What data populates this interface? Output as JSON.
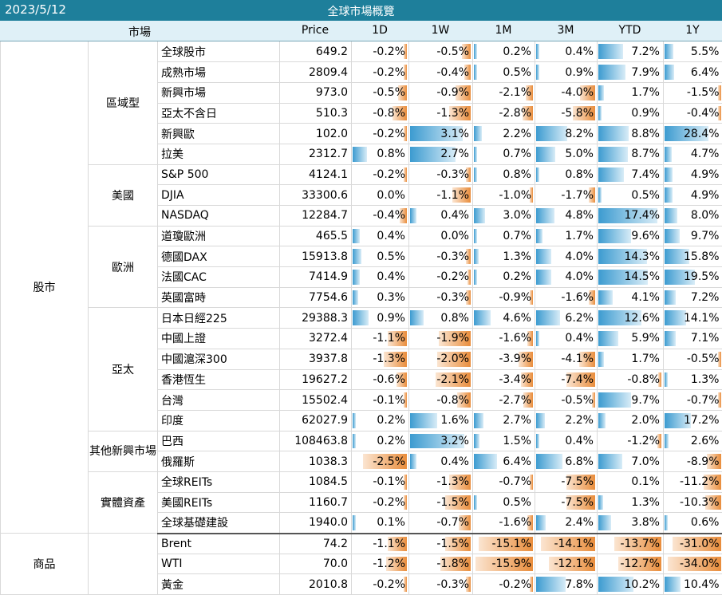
{
  "header": {
    "date": "2023/5/12",
    "title": "全球市場概覽",
    "columns": [
      "市場",
      "Price",
      "1D",
      "1W",
      "1M",
      "3M",
      "YTD",
      "1Y"
    ]
  },
  "colors": {
    "title_bg": "#1e7f9b",
    "header_bg": "#dff0f7",
    "positive_bar": "#3c9bd0",
    "negative_bar": "#e98d3c"
  },
  "sections": [
    {
      "label": "股市",
      "groups": [
        {
          "label": "區域型",
          "rows": [
            {
              "name": "全球股市",
              "price": "649.2",
              "values": [
                "-0.2%",
                "-0.5%",
                "0.2%",
                "0.4%",
                "7.2%",
                "5.5%"
              ]
            },
            {
              "name": "成熟市場",
              "price": "2809.4",
              "values": [
                "-0.2%",
                "-0.4%",
                "0.5%",
                "0.9%",
                "7.9%",
                "6.4%"
              ]
            },
            {
              "name": "新興市場",
              "price": "973.0",
              "values": [
                "-0.5%",
                "-0.9%",
                "-2.1%",
                "-4.0%",
                "1.7%",
                "-1.5%"
              ]
            },
            {
              "name": "亞太不含日",
              "price": "510.3",
              "values": [
                "-0.8%",
                "-1.3%",
                "-2.8%",
                "-5.8%",
                "0.9%",
                "-0.4%"
              ]
            },
            {
              "name": "新興歐",
              "price": "102.0",
              "values": [
                "-0.2%",
                "3.1%",
                "2.2%",
                "8.2%",
                "8.8%",
                "28.4%"
              ]
            },
            {
              "name": "拉美",
              "price": "2312.7",
              "values": [
                "0.8%",
                "2.7%",
                "0.7%",
                "5.0%",
                "8.7%",
                "4.7%"
              ]
            }
          ]
        },
        {
          "label": "美國",
          "rows": [
            {
              "name": "S&P 500",
              "price": "4124.1",
              "values": [
                "-0.2%",
                "-0.3%",
                "0.8%",
                "0.8%",
                "7.4%",
                "4.9%"
              ]
            },
            {
              "name": "DJIA",
              "price": "33300.6",
              "values": [
                "0.0%",
                "-1.1%",
                "-1.0%",
                "-1.7%",
                "0.5%",
                "4.9%"
              ]
            },
            {
              "name": "NASDAQ",
              "price": "12284.7",
              "values": [
                "-0.4%",
                "0.4%",
                "3.0%",
                "4.8%",
                "17.4%",
                "8.0%"
              ]
            }
          ]
        },
        {
          "label": "歐洲",
          "rows": [
            {
              "name": "道瓊歐洲",
              "price": "465.5",
              "values": [
                "0.4%",
                "0.0%",
                "0.7%",
                "1.7%",
                "9.6%",
                "9.7%"
              ]
            },
            {
              "name": "德國DAX",
              "price": "15913.8",
              "values": [
                "0.5%",
                "-0.3%",
                "1.3%",
                "4.0%",
                "14.3%",
                "15.8%"
              ]
            },
            {
              "name": "法國CAC",
              "price": "7414.9",
              "values": [
                "0.4%",
                "-0.2%",
                "0.2%",
                "4.0%",
                "14.5%",
                "19.5%"
              ]
            },
            {
              "name": "英國富時",
              "price": "7754.6",
              "values": [
                "0.3%",
                "-0.3%",
                "-0.9%",
                "-1.6%",
                "4.1%",
                "7.2%"
              ]
            }
          ]
        },
        {
          "label": "亞太",
          "rows": [
            {
              "name": "日本日經225",
              "price": "29388.3",
              "values": [
                "0.9%",
                "0.8%",
                "4.6%",
                "6.2%",
                "12.6%",
                "14.1%"
              ]
            },
            {
              "name": "中國上證",
              "price": "3272.4",
              "values": [
                "-1.1%",
                "-1.9%",
                "-1.6%",
                "0.4%",
                "5.9%",
                "7.1%"
              ]
            },
            {
              "name": "中國滬深300",
              "price": "3937.8",
              "values": [
                "-1.3%",
                "-2.0%",
                "-3.9%",
                "-4.1%",
                "1.7%",
                "-0.5%"
              ]
            },
            {
              "name": "香港恆生",
              "price": "19627.2",
              "values": [
                "-0.6%",
                "-2.1%",
                "-3.4%",
                "-7.4%",
                "-0.8%",
                "1.3%"
              ]
            },
            {
              "name": "台灣",
              "price": "15502.4",
              "values": [
                "-0.1%",
                "-0.8%",
                "-2.7%",
                "-0.5%",
                "9.7%",
                "-0.7%"
              ]
            },
            {
              "name": "印度",
              "price": "62027.9",
              "values": [
                "0.2%",
                "1.6%",
                "2.7%",
                "2.2%",
                "2.0%",
                "17.2%"
              ]
            }
          ]
        },
        {
          "label": "其他新興市場",
          "rows": [
            {
              "name": "巴西",
              "price": "108463.8",
              "values": [
                "0.2%",
                "3.2%",
                "1.5%",
                "0.4%",
                "-1.2%",
                "2.6%"
              ]
            },
            {
              "name": "俄羅斯",
              "price": "1038.3",
              "values": [
                "-2.5%",
                "0.4%",
                "6.4%",
                "6.8%",
                "7.0%",
                "-8.9%"
              ]
            }
          ]
        },
        {
          "label": "實體資產",
          "rows": [
            {
              "name": "全球REITs",
              "price": "1084.5",
              "values": [
                "-0.1%",
                "-1.3%",
                "-0.7%",
                "-7.5%",
                "0.1%",
                "-11.2%"
              ]
            },
            {
              "name": "美國REITs",
              "price": "1160.7",
              "values": [
                "-0.2%",
                "-1.5%",
                "0.5%",
                "-7.5%",
                "1.3%",
                "-10.3%"
              ]
            },
            {
              "name": "全球基礎建設",
              "price": "1940.0",
              "values": [
                "0.1%",
                "-0.7%",
                "-1.6%",
                "2.4%",
                "3.8%",
                "0.6%"
              ]
            }
          ]
        }
      ]
    },
    {
      "label": "商品",
      "groups": [
        {
          "label": "",
          "rows": [
            {
              "name": "Brent",
              "price": "74.2",
              "values": [
                "-1.1%",
                "-1.5%",
                "-15.1%",
                "-14.1%",
                "-13.7%",
                "-31.0%"
              ]
            },
            {
              "name": "WTI",
              "price": "70.0",
              "values": [
                "-1.2%",
                "-1.8%",
                "-15.9%",
                "-12.1%",
                "-12.7%",
                "-34.0%"
              ]
            },
            {
              "name": "黃金",
              "price": "2010.8",
              "values": [
                "-0.2%",
                "-0.3%",
                "-0.2%",
                "7.8%",
                "10.2%",
                "10.4%"
              ]
            }
          ]
        }
      ]
    }
  ]
}
